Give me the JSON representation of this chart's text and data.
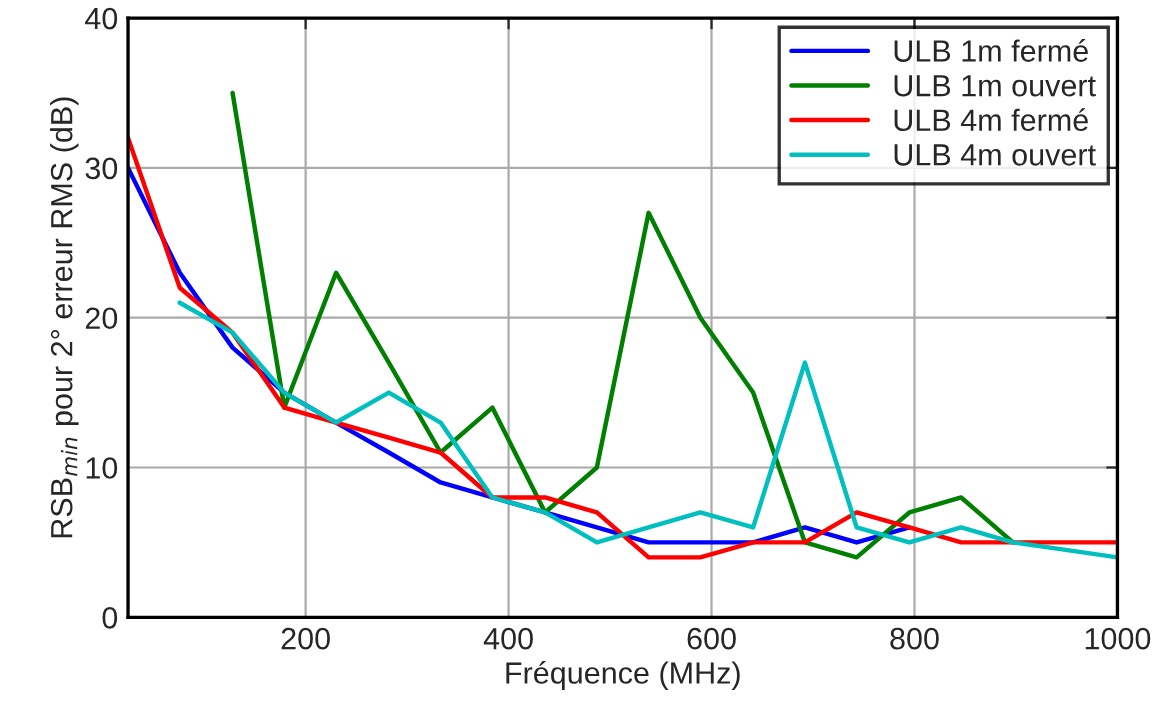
{
  "chart_data": {
    "type": "line",
    "xlabel": "Fréquence (MHz)",
    "ylabel": "RSB$_{min}$ pour 2° erreur RMS (dB)",
    "x": [
      25,
      76,
      128,
      179,
      230,
      282,
      333,
      384,
      436,
      487,
      538,
      589,
      641,
      692,
      743,
      795,
      846,
      897,
      949,
      1000
    ],
    "series": [
      {
        "name": "ULB 1m fermé",
        "color": "#0000ff",
        "values": [
          30,
          23,
          18,
          15,
          13,
          11,
          9,
          8,
          7,
          6,
          5,
          5,
          5,
          6,
          5,
          6,
          null,
          null,
          null,
          null
        ]
      },
      {
        "name": "ULB 1m ouvert",
        "color": "#008000",
        "values": [
          null,
          null,
          35,
          14,
          23,
          17,
          11,
          14,
          7,
          10,
          27,
          20,
          15,
          5,
          4,
          7,
          8,
          5,
          null,
          null
        ]
      },
      {
        "name": "ULB 4m fermé",
        "color": "#ff0000",
        "values": [
          32,
          22,
          19,
          14,
          13,
          12,
          11,
          8,
          8,
          7,
          4,
          4,
          5,
          5,
          7,
          6,
          5,
          5,
          5,
          5
        ]
      },
      {
        "name": "ULB 4m ouvert",
        "color": "#00bfbf",
        "values": [
          null,
          21,
          19,
          15,
          13,
          15,
          13,
          8,
          7,
          5,
          6,
          7,
          6,
          17,
          6,
          5,
          6,
          5,
          4.5,
          4
        ]
      }
    ],
    "xlim": [
      25,
      1000
    ],
    "ylim": [
      0,
      40
    ],
    "xticks": [
      200,
      400,
      600,
      800,
      1000
    ],
    "yticks": [
      0,
      10,
      20,
      30,
      40
    ],
    "grid": true,
    "legend": "top right",
    "line_style": "solid"
  }
}
